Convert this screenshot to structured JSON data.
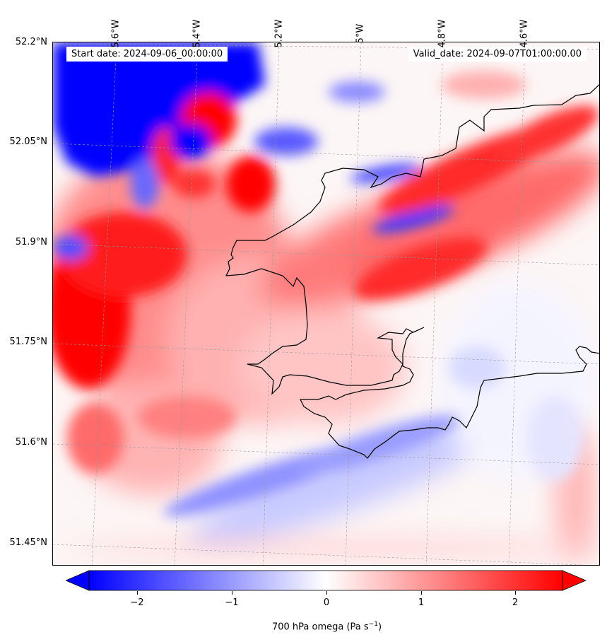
{
  "map": {
    "start_label": "Start date: 2024-09-06_00:00:00",
    "valid_label": "Valid_date: 2024-09-07T01:00:00.00",
    "lat_ticks": [
      "52.2°N",
      "52.05°N",
      "51.9°N",
      "51.75°N",
      "51.6°N",
      "51.45°N"
    ],
    "lon_ticks": [
      "5.6°W",
      "5.4°W",
      "5.2°W",
      "5°W",
      "4.8°W",
      "4.6°W"
    ],
    "extent": {
      "lon_min": -5.75,
      "lon_max": -4.43,
      "lat_min": 51.42,
      "lat_max": 52.2
    },
    "coastline_color": "#000000",
    "colormap": "bwr",
    "colormap_colors": [
      "#0000ff",
      "#ffffff",
      "#ff0000"
    ]
  },
  "colorbar": {
    "label_prefix": "700 hPa omega (Pa s",
    "label_sup": "−1",
    "label_suffix": ")",
    "ticks": [
      "−2",
      "−1",
      "0",
      "1",
      "2"
    ],
    "tick_values": [
      -2,
      -1,
      0,
      1,
      2
    ],
    "vmin": -2.5,
    "vmax": 2.5,
    "extend": "both"
  }
}
